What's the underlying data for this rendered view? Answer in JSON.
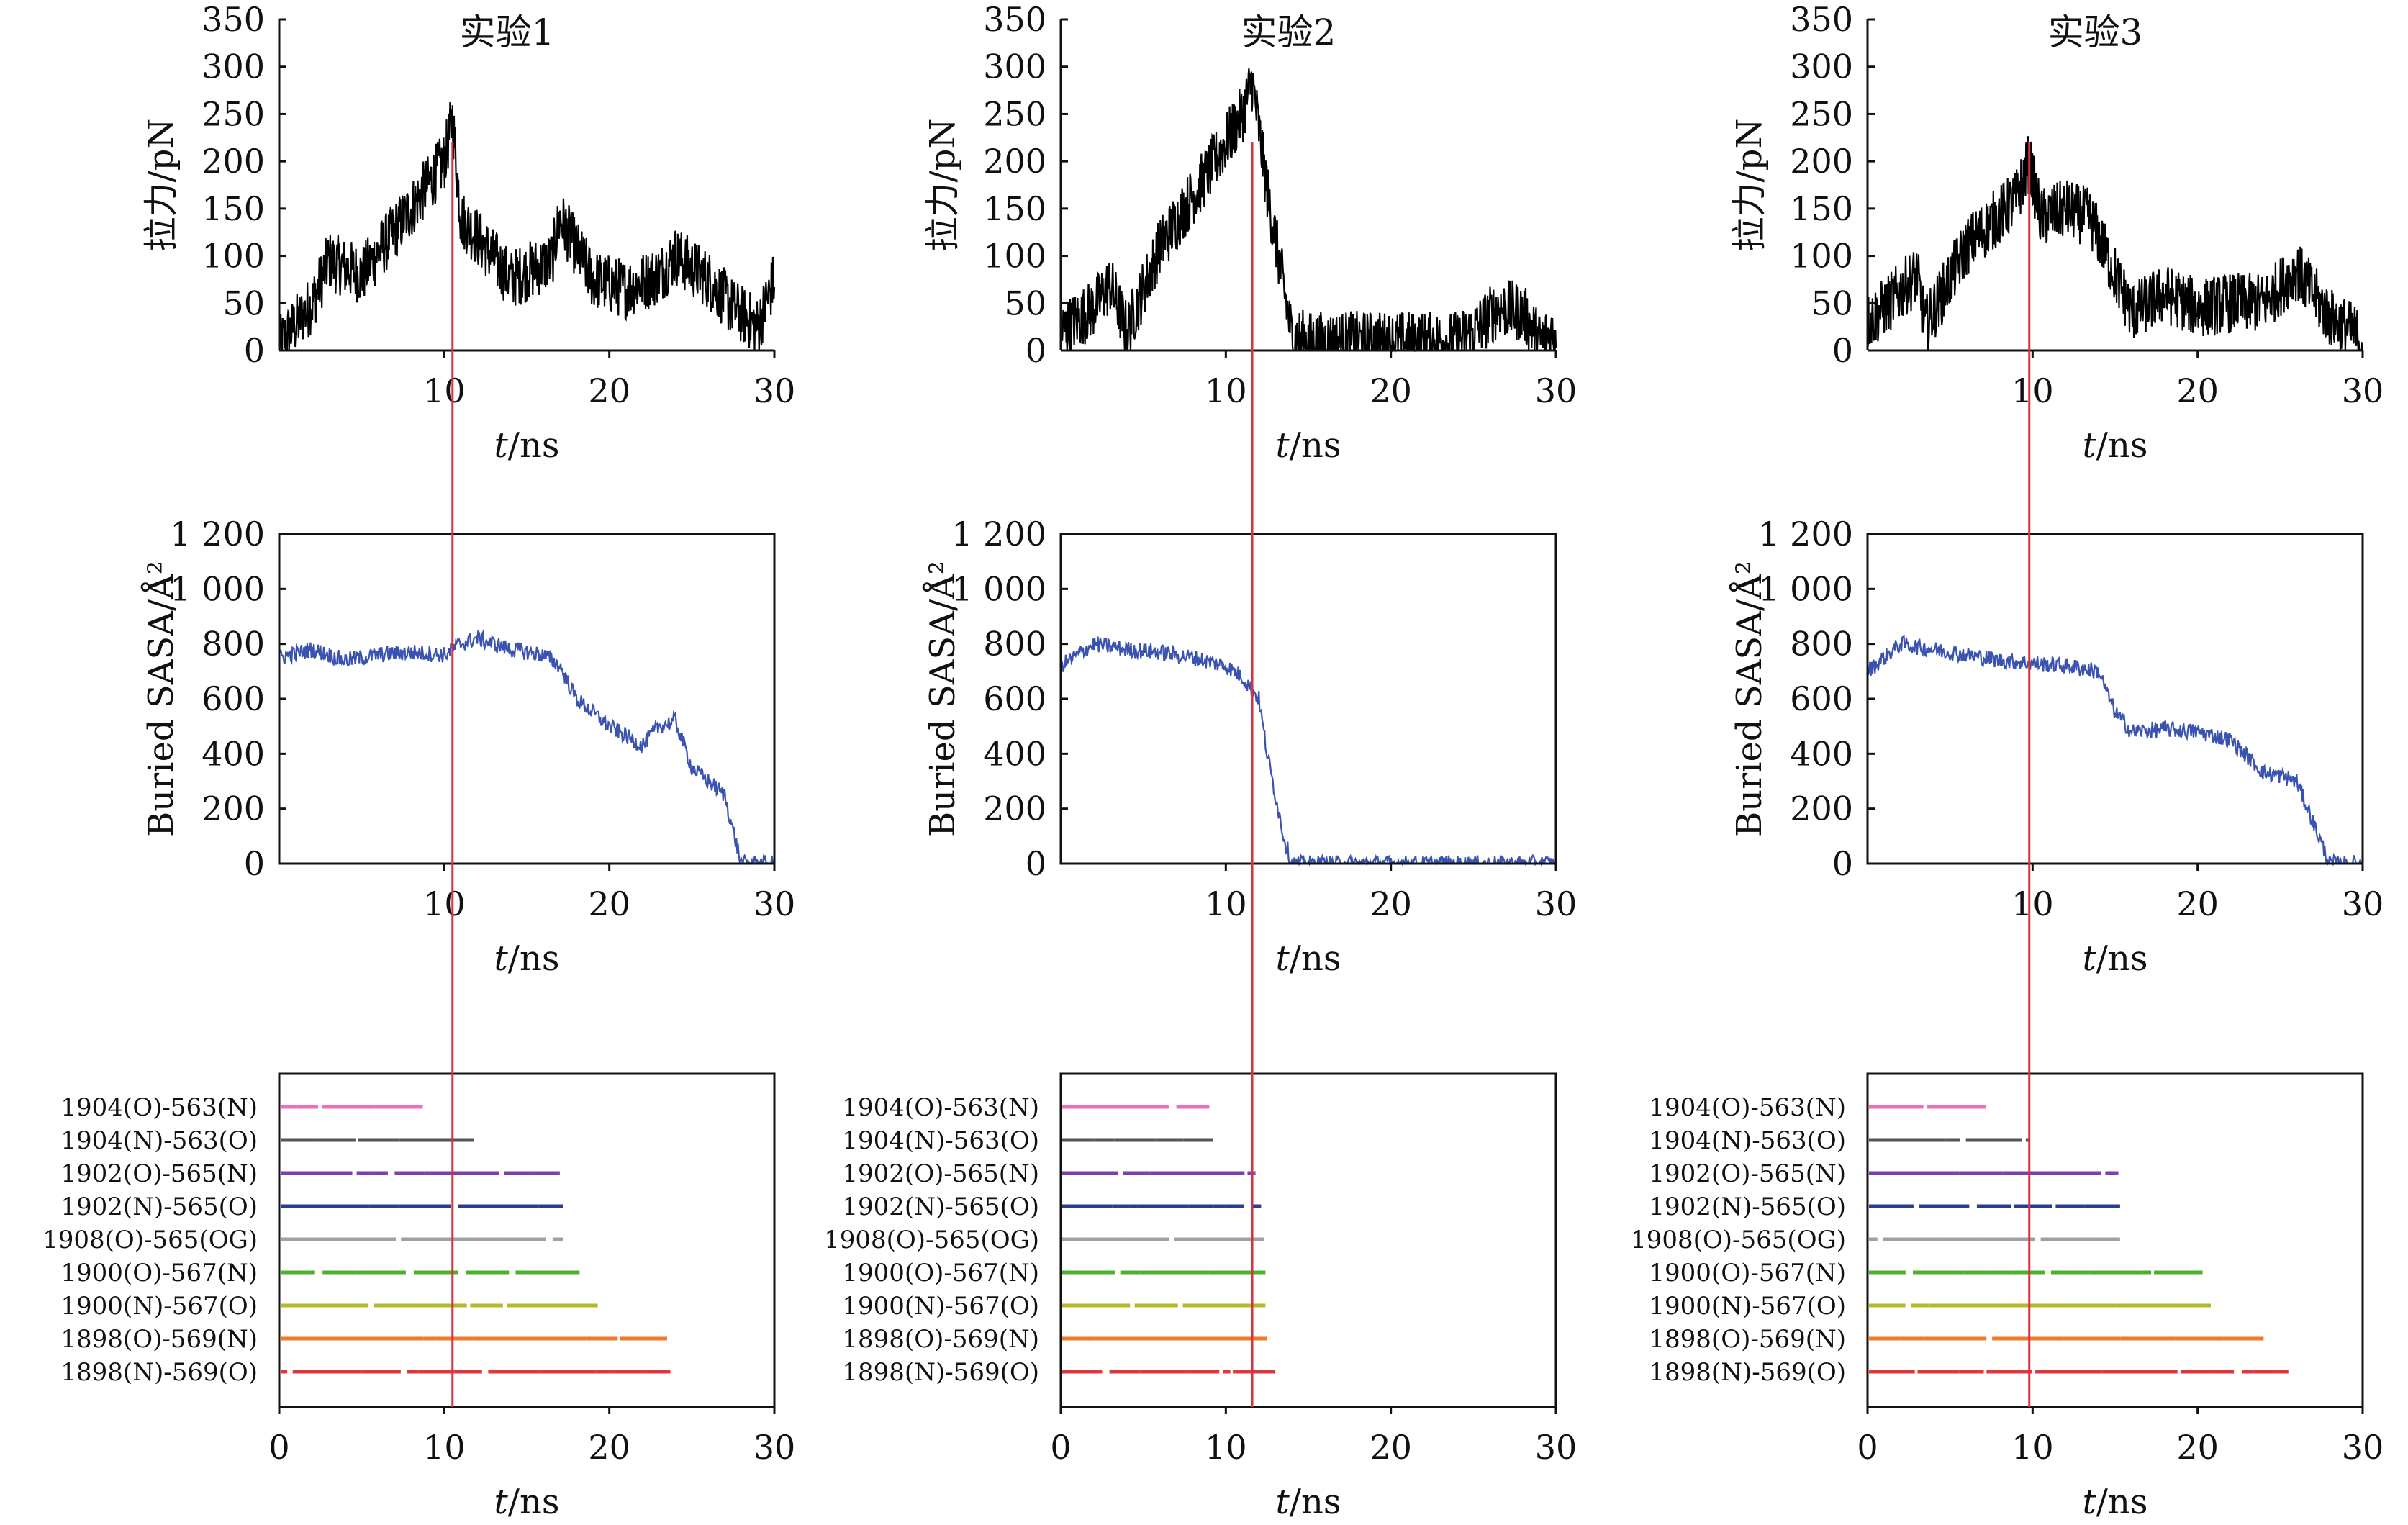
{
  "chart_data": [
    {
      "type": "line",
      "panel": "force-1",
      "title": "实验1",
      "ylabel": "拉力/pN",
      "xlabel_italic": "t",
      "xlabel_rest": "/ns",
      "xlim": [
        0,
        30
      ],
      "ylim": [
        0,
        350
      ],
      "xticks": [
        10,
        20,
        30
      ],
      "yticks": [
        "0",
        "50",
        "100",
        "150",
        "200",
        "250",
        "300",
        "350"
      ],
      "frame": "open",
      "color": "#000000",
      "series": [
        {
          "x": [
            0,
            2,
            3,
            5,
            8,
            10,
            10.5,
            11,
            12,
            14,
            16.5,
            17,
            19,
            21,
            23,
            24,
            26,
            27.5,
            29,
            30
          ],
          "y": [
            5,
            50,
            95,
            80,
            150,
            200,
            245,
            140,
            120,
            75,
            95,
            140,
            75,
            65,
            80,
            100,
            75,
            45,
            25,
            75
          ]
        }
      ]
    },
    {
      "type": "line",
      "panel": "force-2",
      "title": "实验2",
      "ylabel": "拉力/pN",
      "xlabel_italic": "t",
      "xlabel_rest": "/ns",
      "xlim": [
        0,
        30
      ],
      "ylim": [
        0,
        350
      ],
      "xticks": [
        10,
        20,
        30
      ],
      "yticks": [
        "0",
        "50",
        "100",
        "150",
        "200",
        "250",
        "300",
        "350"
      ],
      "frame": "open",
      "color": "#000000",
      "series": [
        {
          "x": [
            0,
            2,
            3,
            4,
            6,
            9,
            11,
            11.6,
            12.5,
            14,
            15,
            18,
            20,
            24,
            25,
            26.5,
            28,
            29,
            30
          ],
          "y": [
            20,
            45,
            70,
            20,
            110,
            190,
            250,
            285,
            170,
            15,
            10,
            10,
            10,
            10,
            20,
            45,
            40,
            10,
            20
          ]
        }
      ]
    },
    {
      "type": "line",
      "panel": "force-3",
      "title": "实验3",
      "ylabel": "拉力/pN",
      "xlabel_italic": "t",
      "xlabel_rest": "/ns",
      "xlim": [
        0,
        30
      ],
      "ylim": [
        0,
        350
      ],
      "xticks": [
        10,
        20,
        30
      ],
      "yticks": [
        "0",
        "50",
        "100",
        "150",
        "200",
        "250",
        "300",
        "350"
      ],
      "frame": "open",
      "color": "#000000",
      "series": [
        {
          "x": [
            0,
            1,
            3,
            3.5,
            6,
            9,
            9.8,
            10.5,
            12,
            13.5,
            15,
            16,
            18,
            20,
            22,
            24,
            26,
            28,
            29,
            30
          ],
          "y": [
            30,
            45,
            80,
            25,
            110,
            160,
            200,
            140,
            150,
            140,
            80,
            40,
            60,
            45,
            50,
            50,
            85,
            35,
            25,
            10
          ]
        }
      ]
    },
    {
      "type": "line",
      "panel": "sasa-1",
      "ylabel": "Buried SASA/Å²",
      "xlabel_italic": "t",
      "xlabel_rest": "/ns",
      "xlim": [
        0,
        30
      ],
      "ylim": [
        0,
        1200
      ],
      "xticks": [
        10,
        20,
        30
      ],
      "yticks": [
        "0",
        "200",
        "400",
        "600",
        "800",
        "1 000",
        "1 200"
      ],
      "frame": "box",
      "color": "#3b53b0",
      "series": [
        {
          "x": [
            0,
            2,
            4,
            6,
            8,
            10,
            11,
            12,
            14,
            16,
            17,
            18,
            20,
            22,
            23,
            24,
            25,
            26,
            27,
            27.5,
            28,
            30
          ],
          "y": [
            750,
            780,
            740,
            760,
            770,
            760,
            800,
            820,
            780,
            760,
            720,
            600,
            500,
            430,
            500,
            520,
            350,
            300,
            250,
            120,
            0,
            0
          ]
        }
      ]
    },
    {
      "type": "line",
      "panel": "sasa-2",
      "ylabel": "Buried SASA/Å²",
      "xlabel_italic": "t",
      "xlabel_rest": "/ns",
      "xlim": [
        0,
        30
      ],
      "ylim": [
        0,
        1200
      ],
      "xticks": [
        10,
        20,
        30
      ],
      "yticks": [
        "0",
        "200",
        "400",
        "600",
        "800",
        "1 000",
        "1 200"
      ],
      "frame": "box",
      "color": "#3b53b0",
      "series": [
        {
          "x": [
            0,
            2,
            4,
            6,
            8,
            10,
            11,
            12,
            12.5,
            13,
            13.5,
            14,
            16,
            20,
            30
          ],
          "y": [
            720,
            800,
            780,
            770,
            750,
            720,
            680,
            600,
            400,
            250,
            100,
            0,
            0,
            0,
            0
          ]
        }
      ]
    },
    {
      "type": "line",
      "panel": "sasa-3",
      "ylabel": "Buried SASA/Å²",
      "xlabel_italic": "t",
      "xlabel_rest": "/ns",
      "xlim": [
        0,
        30
      ],
      "ylim": [
        0,
        1200
      ],
      "xticks": [
        10,
        20,
        30
      ],
      "yticks": [
        "0",
        "200",
        "400",
        "600",
        "800",
        "1 000",
        "1 200"
      ],
      "frame": "box",
      "color": "#3b53b0",
      "series": [
        {
          "x": [
            0,
            2,
            4,
            6,
            8,
            10,
            12,
            14,
            15,
            16,
            18,
            20,
            22,
            24,
            25,
            26,
            27,
            28,
            30
          ],
          "y": [
            700,
            800,
            780,
            760,
            740,
            730,
            720,
            700,
            550,
            480,
            490,
            480,
            450,
            330,
            320,
            300,
            150,
            0,
            0
          ]
        }
      ]
    },
    {
      "type": "scatter",
      "panel": "hbond-1",
      "xlabel_italic": "t",
      "xlabel_rest": "/ns",
      "xlim": [
        0,
        30
      ],
      "xticks": [
        "0",
        "10",
        "20",
        "30"
      ],
      "frame": "box",
      "categories": [
        "1904(O)-563(N)",
        "1904(N)-563(O)",
        "1902(O)-565(N)",
        "1902(N)-565(O)",
        "1908(O)-565(OG)",
        "1900(O)-567(N)",
        "1900(N)-567(O)",
        "1898(O)-569(N)",
        "1898(N)-569(O)"
      ],
      "colors": [
        "#ef6fb7",
        "#555555",
        "#7a3fb0",
        "#2b3c8c",
        "#a0a0a0",
        "#4caf2e",
        "#b4b82a",
        "#ef7a2a",
        "#e2363d"
      ],
      "x_end": [
        8.7,
        11.8,
        17.0,
        17.2,
        17.2,
        18.2,
        19.3,
        23.5,
        23.7
      ]
    },
    {
      "type": "scatter",
      "panel": "hbond-2",
      "xlabel_italic": "t",
      "xlabel_rest": "/ns",
      "xlim": [
        0,
        30
      ],
      "xticks": [
        "0",
        "10",
        "20",
        "30"
      ],
      "frame": "box",
      "categories": [
        "1904(O)-563(N)",
        "1904(N)-563(O)",
        "1902(O)-565(N)",
        "1902(N)-565(O)",
        "1908(O)-565(OG)",
        "1900(O)-567(N)",
        "1900(N)-567(O)",
        "1898(O)-569(N)",
        "1898(N)-569(O)"
      ],
      "colors": [
        "#ef6fb7",
        "#555555",
        "#7a3fb0",
        "#2b3c8c",
        "#a0a0a0",
        "#4caf2e",
        "#b4b82a",
        "#ef7a2a",
        "#e2363d"
      ],
      "x_end": [
        9.0,
        9.2,
        11.8,
        12.3,
        12.3,
        12.4,
        12.4,
        12.5,
        13.0
      ]
    },
    {
      "type": "scatter",
      "panel": "hbond-3",
      "xlabel_italic": "t",
      "xlabel_rest": "/ns",
      "xlim": [
        0,
        30
      ],
      "xticks": [
        "0",
        "10",
        "20",
        "30"
      ],
      "frame": "box",
      "categories": [
        "1904(O)-563(N)",
        "1904(N)-563(O)",
        "1902(O)-565(N)",
        "1902(N)-565(O)",
        "1908(O)-565(OG)",
        "1900(O)-567(N)",
        "1900(N)-567(O)",
        "1898(O)-569(N)",
        "1898(N)-569(O)"
      ],
      "colors": [
        "#ef6fb7",
        "#555555",
        "#7a3fb0",
        "#2b3c8c",
        "#a0a0a0",
        "#4caf2e",
        "#b4b82a",
        "#ef7a2a",
        "#e2363d"
      ],
      "x_end": [
        7.2,
        9.8,
        15.2,
        15.3,
        15.3,
        20.3,
        20.8,
        24.0,
        25.5
      ]
    }
  ],
  "marker_lines": {
    "color": "#d6333f",
    "times": [
      10.5,
      11.6,
      9.8
    ]
  }
}
